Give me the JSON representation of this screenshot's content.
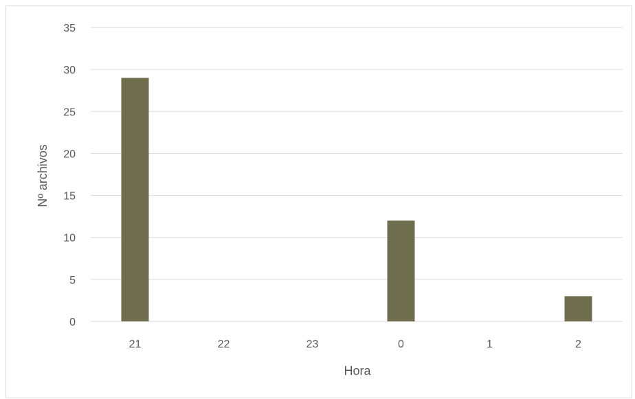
{
  "chart_data": {
    "type": "bar",
    "categories": [
      "21",
      "22",
      "23",
      "0",
      "1",
      "2"
    ],
    "values": [
      29,
      0,
      0,
      12,
      0,
      3
    ],
    "title": "",
    "xlabel": "Hora",
    "ylabel": "Nº archivos",
    "ylim": [
      0,
      35
    ],
    "yticks": [
      0,
      5,
      10,
      15,
      20,
      25,
      30,
      35
    ],
    "grid": true,
    "legend": "none",
    "bar_color": "#6e6e4f",
    "gridline_color": "#d9d9d9",
    "text_color": "#595959"
  }
}
